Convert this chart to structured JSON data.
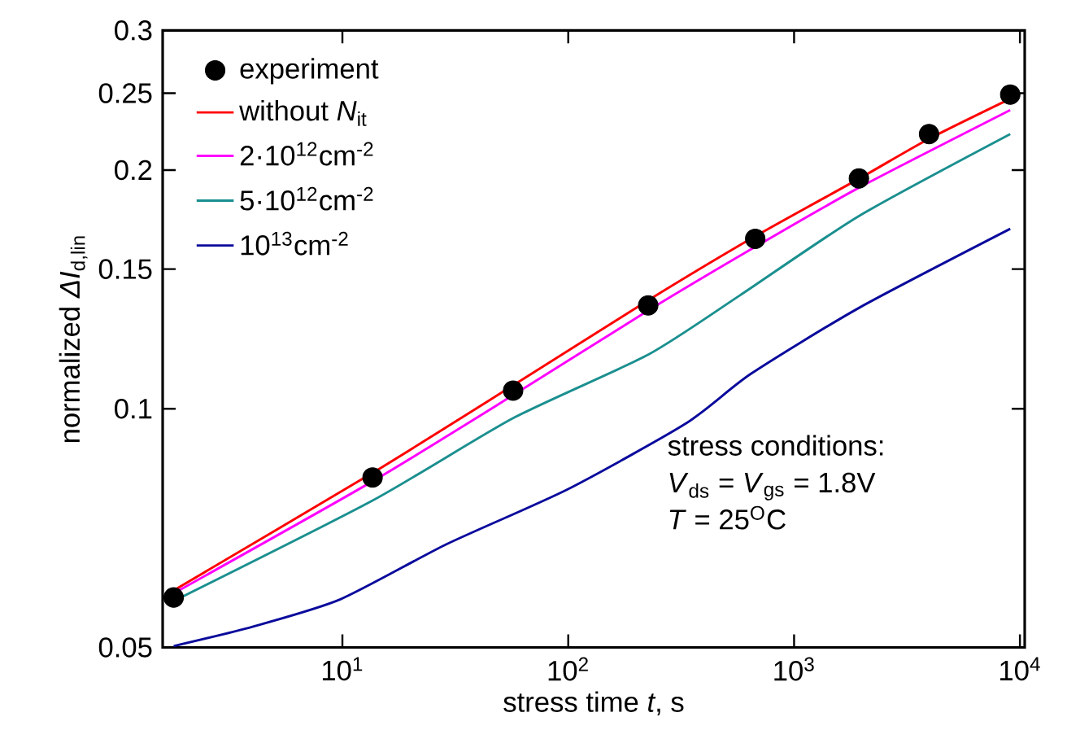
{
  "chart_data": {
    "type": "line",
    "xlabel": "stress time *t*, s",
    "ylabel": "normalized *ΔI*$_{d,lin}$",
    "log": "xy",
    "grid": false,
    "legend": "top left",
    "xlim": [
      1.6,
      10500
    ],
    "ylim": [
      0.05,
      0.3
    ],
    "xticks": [
      {
        "value": 10,
        "label": "10$^{1}$"
      },
      {
        "value": 100,
        "label": "10$^{2}$"
      },
      {
        "value": 1000,
        "label": "10$^{3}$"
      },
      {
        "value": 10000,
        "label": "10$^{4}$"
      }
    ],
    "yticks": [
      0.05,
      0.1,
      0.15,
      0.2,
      0.25,
      0.3
    ],
    "series": [
      {
        "name": "experiment",
        "type": "scatter",
        "marker": "circle",
        "color": "#000000",
        "x": [
          1.79,
          13.6,
          57,
          226,
          673,
          1937,
          3960,
          9060
        ],
        "values": [
          0.0578,
          0.0819,
          0.1054,
          0.135,
          0.1638,
          0.1952,
          0.222,
          0.249
        ]
      },
      {
        "name": "without *N*$_{it}$",
        "type": "line",
        "color": "#ff0000",
        "x": [
          1.79,
          13.6,
          57,
          226,
          673,
          1937,
          3960,
          9060
        ],
        "values": [
          0.059,
          0.083,
          0.107,
          0.137,
          0.165,
          0.195,
          0.219,
          0.246
        ]
      },
      {
        "name": "2·10$^{12}$cm$^{-2}$",
        "type": "line",
        "color": "#ff00ff",
        "x": [
          1.79,
          13.6,
          57,
          226,
          673,
          1937,
          9060
        ],
        "values": [
          0.0585,
          0.081,
          0.104,
          0.133,
          0.16,
          0.19,
          0.238
        ]
      },
      {
        "name": "5·10$^{12}$cm$^{-2}$",
        "type": "line",
        "color": "#1b8f8f",
        "x": [
          1.79,
          13.6,
          57,
          226,
          576,
          1937,
          9060
        ],
        "values": [
          0.0572,
          0.0766,
          0.0973,
          0.117,
          0.139,
          0.175,
          0.222
        ]
      },
      {
        "name": "10$^{13}$cm$^{-2}$",
        "type": "line",
        "color": "#0a0a9c",
        "x": [
          1.79,
          4,
          9.8,
          29,
          99,
          332,
          642,
          1937,
          9060
        ],
        "values": [
          0.0502,
          0.0531,
          0.0575,
          0.0675,
          0.0791,
          0.0958,
          0.1106,
          0.134,
          0.1686
        ]
      }
    ],
    "annotations": [
      "stress conditions:",
      "*V*$_{ds}$ = *V*$_{gs}$ = 1.8V",
      "*T* = 25$^{O}$C"
    ]
  }
}
